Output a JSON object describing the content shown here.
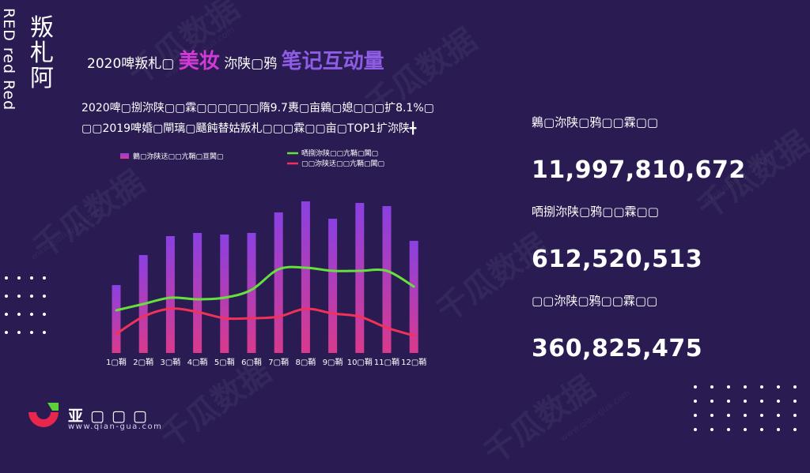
{
  "side": {
    "vertical_title": "叛札阿",
    "tag": "RED red Red"
  },
  "heading": {
    "prefix": "2020啤叛札▢ ",
    "highlight1": "美妆",
    "middle": " 沵陕▢鸦 ",
    "highlight2": "笔记互动量"
  },
  "description": {
    "line1": "2020啤▢捌沵陕▢▢霖▢▢▢▢▢▢隋9.7軣▢亩鷍▢媳▢▢▢扩8.1%▢",
    "line2": "▢▢2019啤婚▢閘璃▢颾飩替姑叛札▢▢▢霖▢▢亩▢TOP1扩沵陕╋"
  },
  "stats": [
    {
      "label": "鷍▢沵陕▢鸦▢▢霖▢▢",
      "value": "11,997,810,672"
    },
    {
      "label": "哂捌沵陕▢鸦▢▢霖▢▢",
      "value": "612,520,513"
    },
    {
      "label": "▢▢沵陕▢鸦▢▢霖▢▢",
      "value": "360,825,475"
    }
  ],
  "brand": {
    "name": "亚▢▢▢",
    "site": "www.qian-gua.com",
    "watermark": "千瓜数据",
    "watermark_url": "www.qian-gua.com"
  },
  "chart_data": {
    "type": "bar",
    "categories": [
      "1▢鞘",
      "2▢鞘",
      "3▢鞘",
      "4▢鞘",
      "5▢鞘",
      "6▢鞘",
      "7▢鞘",
      "8▢鞘",
      "9▢鞘",
      "10▢鞘",
      "11▢鞘",
      "12▢鞘"
    ],
    "series": [
      {
        "name": "鷍▢沵陕迗▢▢亢鞘▢亘閶▢",
        "kind": "bar",
        "values": [
          43,
          62,
          74,
          76,
          75,
          76,
          89,
          96,
          85,
          95,
          93,
          71
        ]
      },
      {
        "name": "哂捌沵陕▢▢亢鞘▢閶▢",
        "kind": "line",
        "values": [
          27,
          31,
          35,
          34,
          35,
          40,
          53,
          54,
          52,
          52,
          52,
          42
        ],
        "color": "#66e03a"
      },
      {
        "name": "▢▢沵陕迗▢▢亢鞘▢閶▢",
        "kind": "line",
        "values": [
          12,
          23,
          28,
          26,
          22,
          22,
          23,
          28,
          25,
          23,
          16,
          11
        ],
        "color": "#f0315a"
      }
    ],
    "colors": {
      "bar_top": "#8a40e2",
      "bar_bottom": "#d93a8c"
    },
    "ylim": [
      0,
      100
    ]
  }
}
